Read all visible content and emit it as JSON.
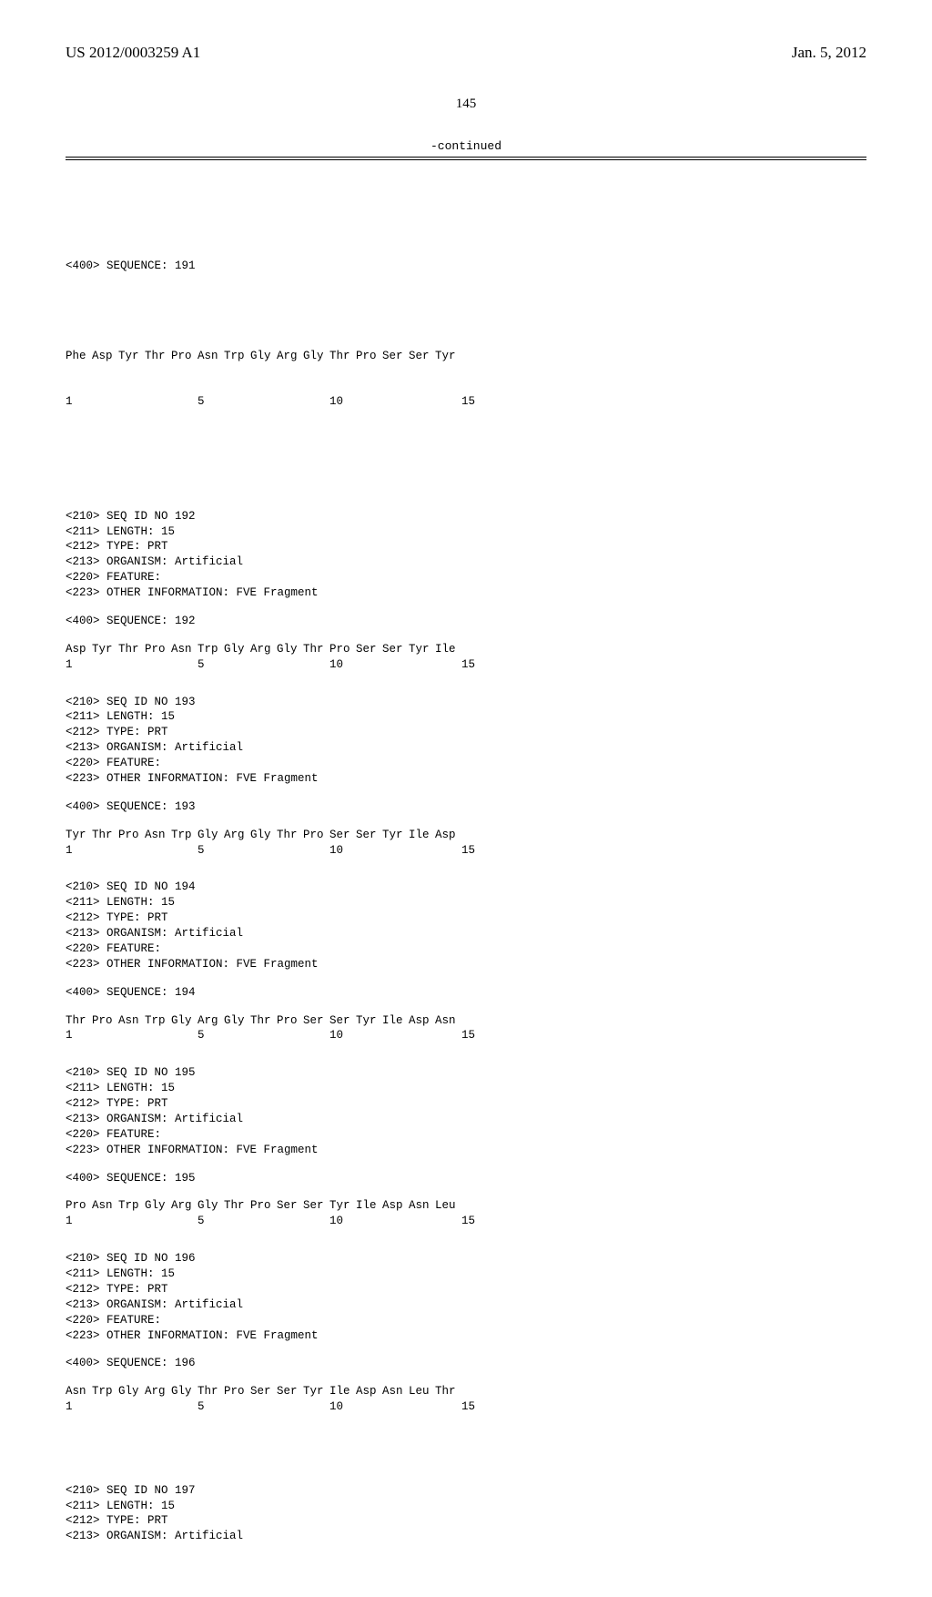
{
  "header": {
    "pub_number": "US 2012/0003259 A1",
    "pub_date": "Jan. 5, 2012"
  },
  "page_number": "145",
  "continued_label": "-continued",
  "seq_header_labels": {
    "seq_id": "SEQ ID NO",
    "length": "LENGTH:",
    "type": "TYPE:",
    "organism": "ORGANISM:",
    "feature": "FEATURE:",
    "other_info": "OTHER INFORMATION:",
    "sequence": "SEQUENCE:"
  },
  "common": {
    "length_val": "15",
    "type_val": "PRT",
    "organism_val": "Artificial",
    "other_info_val": "FVE Fragment",
    "num_labels": {
      "p1": "1",
      "p5": "5",
      "p10": "10",
      "p15": "15"
    }
  },
  "top_sequence": {
    "seq_label": "<400> SEQUENCE: 191",
    "residues": [
      "Phe",
      "Asp",
      "Tyr",
      "Thr",
      "Pro",
      "Asn",
      "Trp",
      "Gly",
      "Arg",
      "Gly",
      "Thr",
      "Pro",
      "Ser",
      "Ser",
      "Tyr"
    ]
  },
  "sequences": [
    {
      "id": "192",
      "residues": [
        "Asp",
        "Tyr",
        "Thr",
        "Pro",
        "Asn",
        "Trp",
        "Gly",
        "Arg",
        "Gly",
        "Thr",
        "Pro",
        "Ser",
        "Ser",
        "Tyr",
        "Ile"
      ]
    },
    {
      "id": "193",
      "residues": [
        "Tyr",
        "Thr",
        "Pro",
        "Asn",
        "Trp",
        "Gly",
        "Arg",
        "Gly",
        "Thr",
        "Pro",
        "Ser",
        "Ser",
        "Tyr",
        "Ile",
        "Asp"
      ]
    },
    {
      "id": "194",
      "residues": [
        "Thr",
        "Pro",
        "Asn",
        "Trp",
        "Gly",
        "Arg",
        "Gly",
        "Thr",
        "Pro",
        "Ser",
        "Ser",
        "Tyr",
        "Ile",
        "Asp",
        "Asn"
      ]
    },
    {
      "id": "195",
      "residues": [
        "Pro",
        "Asn",
        "Trp",
        "Gly",
        "Arg",
        "Gly",
        "Thr",
        "Pro",
        "Ser",
        "Ser",
        "Tyr",
        "Ile",
        "Asp",
        "Asn",
        "Leu"
      ]
    },
    {
      "id": "196",
      "residues": [
        "Asn",
        "Trp",
        "Gly",
        "Arg",
        "Gly",
        "Thr",
        "Pro",
        "Ser",
        "Ser",
        "Tyr",
        "Ile",
        "Asp",
        "Asn",
        "Leu",
        "Thr"
      ]
    }
  ],
  "tail_block": {
    "id": "197"
  }
}
